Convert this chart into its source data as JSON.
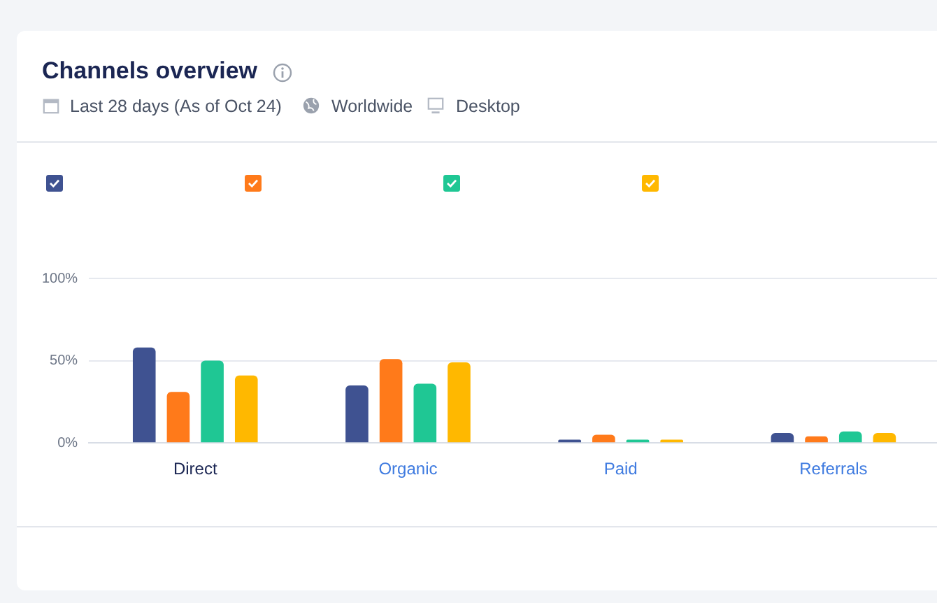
{
  "chart_data": {
    "type": "bar",
    "title": "Channels overview",
    "subtitle": "Last 28 days (As of Oct 24)",
    "annotations": [
      "Worldwide",
      "Desktop"
    ],
    "categories": [
      "Direct",
      "Organic",
      "Paid",
      "Referrals"
    ],
    "series": [
      {
        "color": "#3f5291",
        "values": [
          58,
          35,
          2,
          6
        ]
      },
      {
        "color": "#ff7a1a",
        "values": [
          31,
          51,
          5,
          4
        ]
      },
      {
        "color": "#1fc794",
        "values": [
          50,
          36,
          2,
          7
        ]
      },
      {
        "color": "#ffb800",
        "values": [
          41,
          49,
          2,
          6
        ]
      }
    ],
    "ylim": [
      0,
      100
    ],
    "yticks": [
      {
        "value": 0,
        "label": "0%"
      },
      {
        "value": 50,
        "label": "50%"
      },
      {
        "value": 100,
        "label": "100%"
      }
    ],
    "grid": "y",
    "legend": false
  }
}
